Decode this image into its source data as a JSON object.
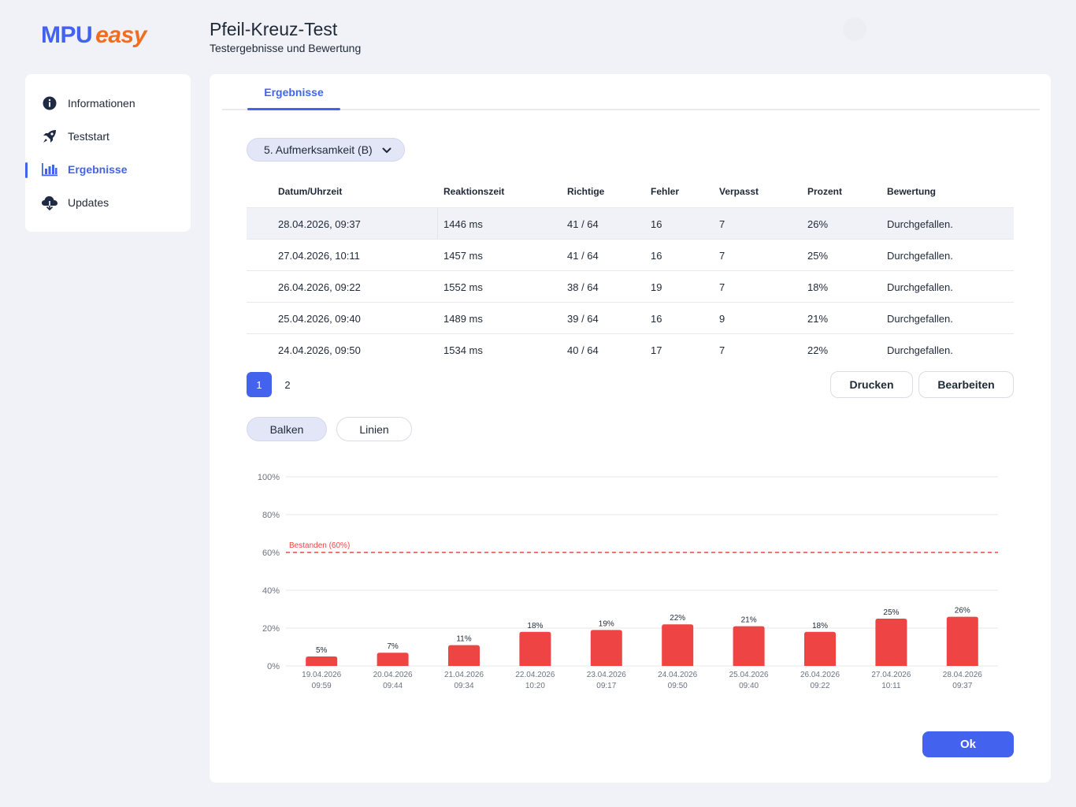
{
  "app": {
    "logo_main": "MPU",
    "logo_accent": "easy",
    "title": "Pfeil-Kreuz-Test",
    "subtitle": "Testergebnisse und Bewertung"
  },
  "sidebar": {
    "items": [
      {
        "label": "Informationen",
        "icon": "info-icon"
      },
      {
        "label": "Teststart",
        "icon": "rocket-icon"
      },
      {
        "label": "Ergebnisse",
        "icon": "bar-chart-icon",
        "active": true
      },
      {
        "label": "Updates",
        "icon": "cloud-download-icon"
      }
    ]
  },
  "tabs": [
    {
      "label": "Ergebnisse",
      "active": true
    }
  ],
  "dropdown": {
    "value": "5. Aufmerksamkeit (B)"
  },
  "table": {
    "headers": [
      "Datum/Uhrzeit",
      "Reaktionszeit",
      "Richtige",
      "Fehler",
      "Verpasst",
      "Prozent",
      "Bewertung"
    ],
    "rows": [
      [
        "28.04.2026, 09:37",
        "1446 ms",
        "41 / 64",
        "16",
        "7",
        "26%",
        "Durchgefallen."
      ],
      [
        "27.04.2026, 10:11",
        "1457 ms",
        "41 / 64",
        "16",
        "7",
        "25%",
        "Durchgefallen."
      ],
      [
        "26.04.2026, 09:22",
        "1552 ms",
        "38 / 64",
        "19",
        "7",
        "18%",
        "Durchgefallen."
      ],
      [
        "25.04.2026, 09:40",
        "1489 ms",
        "39 / 64",
        "16",
        "9",
        "21%",
        "Durchgefallen."
      ],
      [
        "24.04.2026, 09:50",
        "1534 ms",
        "40 / 64",
        "17",
        "7",
        "22%",
        "Durchgefallen."
      ]
    ]
  },
  "pagination": {
    "pages": [
      "1",
      "2"
    ],
    "current": "1"
  },
  "actions": {
    "print": "Drucken",
    "edit": "Bearbeiten",
    "ok": "Ok"
  },
  "chart_toggle": {
    "bars": "Balken",
    "lines": "Linien",
    "active": "bars"
  },
  "colors": {
    "accent": "#4363ee",
    "bar": "#ef4444",
    "threshold": "#ef4444"
  },
  "chart_data": {
    "type": "bar",
    "categories": [
      [
        "19.04.2026",
        "09:59"
      ],
      [
        "20.04.2026",
        "09:44"
      ],
      [
        "21.04.2026",
        "09:34"
      ],
      [
        "22.04.2026",
        "10:20"
      ],
      [
        "23.04.2026",
        "09:17"
      ],
      [
        "24.04.2026",
        "09:50"
      ],
      [
        "25.04.2026",
        "09:40"
      ],
      [
        "26.04.2026",
        "09:22"
      ],
      [
        "27.04.2026",
        "10:11"
      ],
      [
        "28.04.2026",
        "09:37"
      ]
    ],
    "values": [
      5,
      7,
      11,
      18,
      19,
      22,
      21,
      18,
      25,
      26
    ],
    "value_suffix": "%",
    "ylim": [
      0,
      100
    ],
    "yticks": [
      0,
      20,
      40,
      60,
      80,
      100
    ],
    "ytick_labels": [
      "0%",
      "20%",
      "40%",
      "60%",
      "80%",
      "100%"
    ],
    "threshold": {
      "value": 60,
      "label": "Bestanden (60%)"
    },
    "grid": true
  }
}
